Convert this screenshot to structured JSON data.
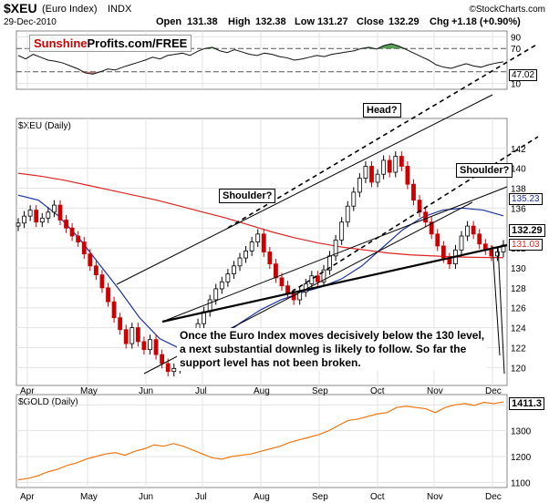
{
  "header": {
    "symbol": "$XEU",
    "name": "(Euro Index)",
    "exchange": "INDX",
    "date": "29-Dec-2010",
    "open_label": "Open",
    "open": "131.38",
    "high_label": "High",
    "high": "132.38",
    "low_label": "Low",
    "low": "131.27",
    "close_label": "Close",
    "close": "132.29",
    "chg_label": "Chg",
    "chg": "+1.18 (+0.90%)",
    "watermark": "©StockCharts.com"
  },
  "brand": {
    "part1": "Sunshine",
    "part2": "Profits.com/FREE"
  },
  "annotations": {
    "head": "Head?",
    "shoulder_left": "Shoulder?",
    "shoulder_right": "Shoulder?",
    "note_lines": [
      "Once the Euro Index moves decisively below the 130 level,",
      "a next substantial downleg is likely to follow. So far the",
      "support level has not been broken."
    ]
  },
  "colors": {
    "up": "#000000",
    "down": "#cc0000",
    "ma_long": "#dd2222",
    "ma_short": "#1a33a0",
    "gold": "#ee7711",
    "grid": "#e3e3e3",
    "rsi_overbought": "#2f8a2f",
    "rsi_oversold": "#b06060"
  },
  "chart_data": [
    {
      "type": "line",
      "title": "RSI panel",
      "y_ticks": [
        10,
        30,
        70,
        90
      ],
      "ylim": [
        0,
        100
      ],
      "levels": [
        30,
        70
      ],
      "current_value": 47.02,
      "x_tick_labels": [
        "Apr",
        "May",
        "Jun",
        "Jul",
        "Aug",
        "Sep",
        "Oct",
        "Nov",
        "Dec"
      ],
      "values": [
        58,
        52,
        60,
        55,
        50,
        48,
        45,
        40,
        35,
        28,
        26,
        30,
        35,
        33,
        38,
        42,
        46,
        50,
        55,
        52,
        58,
        60,
        62,
        58,
        65,
        70,
        72,
        66,
        63,
        68,
        64,
        60,
        58,
        62,
        60,
        56,
        54,
        50,
        52,
        55,
        58,
        56,
        60,
        62,
        64,
        66,
        70,
        72,
        69,
        75,
        78,
        74,
        68,
        62,
        56,
        50,
        42,
        38,
        36,
        40,
        44,
        40,
        38,
        42,
        45,
        47
      ]
    },
    {
      "type": "candlestick",
      "title": "$XEU (Daily)",
      "y_ticks": [
        120,
        122,
        124,
        126,
        128,
        130,
        132,
        134,
        136,
        138,
        140,
        142
      ],
      "ylim": [
        118.2,
        145
      ],
      "x_tick_labels": [
        "Apr",
        "May",
        "Jun",
        "Jul",
        "Aug",
        "Sep",
        "Oct",
        "Nov",
        "Dec"
      ],
      "last_close": 132.29,
      "ma_long_last": 131.03,
      "ma_short_last": 135.23,
      "closes": [
        134.5,
        135.2,
        135.8,
        134.6,
        135.0,
        135.6,
        136.3,
        134.8,
        134.0,
        133.2,
        132.6,
        131.4,
        130.2,
        129.3,
        128.0,
        126.6,
        125.0,
        123.8,
        122.4,
        124.0,
        122.6,
        121.8,
        122.8,
        121.3,
        120.4,
        119.6,
        119.9,
        121.0,
        122.3,
        123.2,
        124.4,
        125.6,
        126.8,
        127.9,
        128.6,
        129.4,
        130.2,
        131.0,
        131.7,
        132.6,
        133.4,
        131.6,
        130.4,
        129.0,
        128.2,
        127.4,
        126.8,
        127.6,
        128.4,
        129.2,
        128.6,
        129.8,
        131.2,
        132.8,
        134.6,
        136.2,
        137.6,
        139.0,
        140.2,
        138.6,
        139.4,
        140.8,
        139.6,
        141.2,
        140.2,
        138.4,
        136.8,
        135.6,
        134.6,
        133.4,
        132.2,
        131.0,
        130.4,
        131.8,
        133.2,
        134.2,
        133.4,
        132.4,
        131.8,
        131.2,
        131.6,
        132.29
      ],
      "ma_long": [
        139.5,
        139.2,
        138.8,
        138.3,
        137.8,
        137.3,
        136.8,
        136.2,
        135.6,
        135.0,
        134.3,
        133.6,
        133.0,
        132.5,
        132.1,
        131.8,
        131.5,
        131.3,
        131.2,
        131.1,
        131.05,
        131.03
      ],
      "ma_short": [
        137.3,
        136.8,
        135.2,
        133.0,
        130.4,
        127.8,
        125.0,
        122.9,
        121.9,
        122.0,
        123.0,
        124.5,
        125.8,
        126.8,
        127.5,
        128.1,
        128.9,
        130.2,
        132.0,
        133.8,
        135.1,
        135.8,
        136.0,
        135.8,
        135.23
      ]
    },
    {
      "type": "line",
      "title": "$GOLD (Daily)",
      "y_ticks": [
        1100,
        1200,
        1300,
        1400
      ],
      "ylim": [
        1080,
        1440
      ],
      "x_tick_labels": [
        "Apr",
        "May",
        "Jun",
        "Jul",
        "Aug",
        "Sep",
        "Oct",
        "Nov",
        "Dec"
      ],
      "last_value": 1411.3,
      "values": [
        1110,
        1115,
        1125,
        1140,
        1150,
        1165,
        1175,
        1190,
        1200,
        1210,
        1215,
        1205,
        1220,
        1230,
        1245,
        1240,
        1250,
        1240,
        1225,
        1210,
        1195,
        1190,
        1200,
        1205,
        1210,
        1220,
        1230,
        1240,
        1255,
        1265,
        1275,
        1285,
        1300,
        1320,
        1340,
        1345,
        1355,
        1365,
        1370,
        1390,
        1395,
        1390,
        1385,
        1370,
        1390,
        1400,
        1405,
        1398,
        1410,
        1405,
        1411.3
      ]
    }
  ]
}
